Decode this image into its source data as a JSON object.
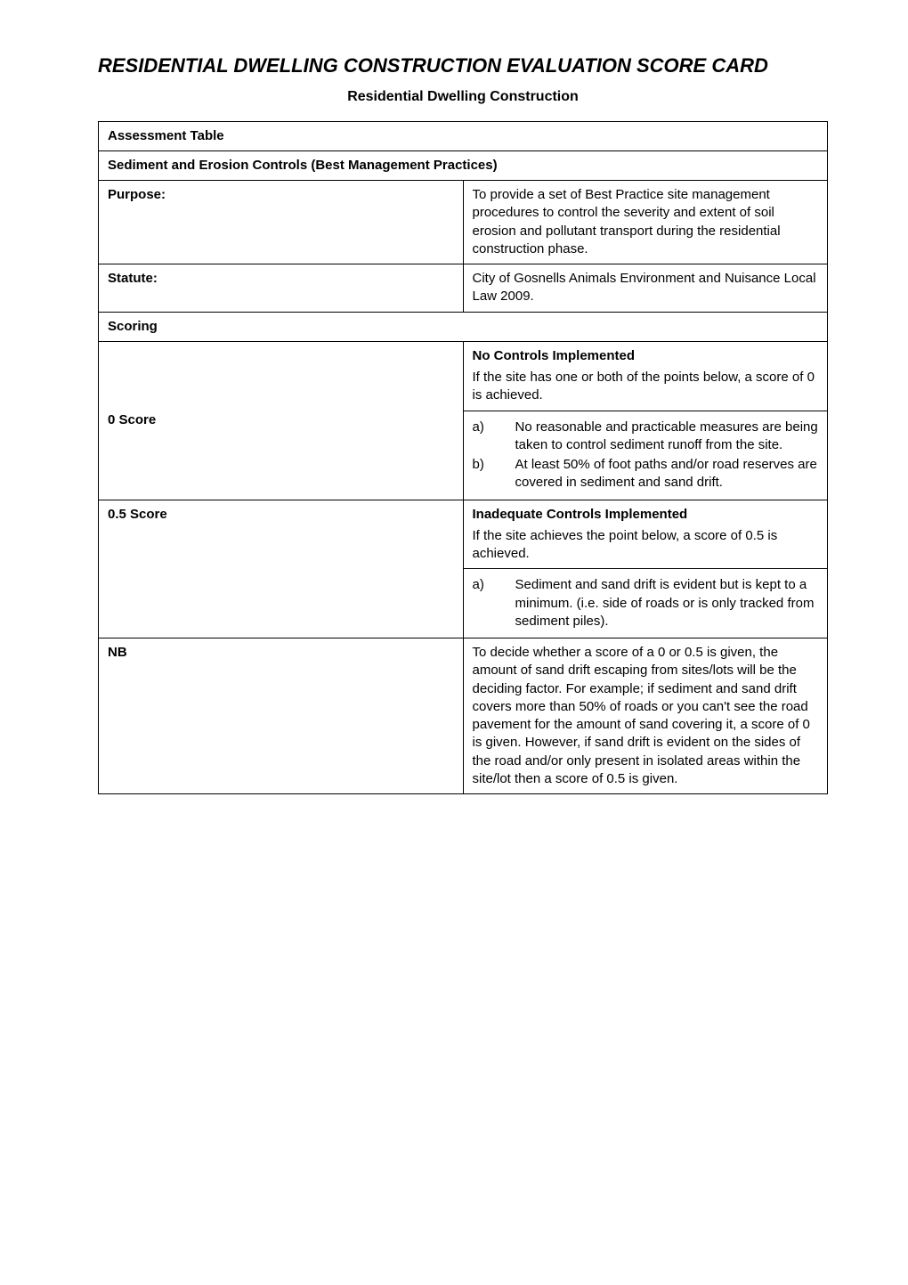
{
  "title_line": "RESIDENTIAL DWELLING CONSTRUCTION EVALUATION SCORE CARD",
  "subtitle": "Residential Dwelling Construction",
  "table": {
    "header": "Assessment Table",
    "section_header": "Sediment and Erosion Controls (Best Management Practices)",
    "purpose": {
      "label": "Purpose:",
      "text": "To provide a set of Best Practice site management procedures to control the severity and extent of soil erosion and pollutant transport during the residential construction phase."
    },
    "statute": {
      "label": "Statute:",
      "text": "City of Gosnells Animals Environment and Nuisance Local Law 2009."
    },
    "scoring_header": "Scoring",
    "score0": {
      "label": "0 Score",
      "heading": "No Controls Implemented",
      "intro": "If the site has one or both of the points below, a score of 0 is achieved.",
      "items": [
        {
          "letter": "a)",
          "text": "No reasonable and practicable measures are being taken to control sediment runoff from the site."
        },
        {
          "letter": "b)",
          "text": "At least 50% of foot paths and/or road reserves are covered in sediment and sand drift."
        }
      ]
    },
    "score05": {
      "label": "0.5 Score",
      "heading": "Inadequate Controls Implemented",
      "intro": "If the site achieves the point below, a score of 0.5 is achieved.",
      "items": [
        {
          "letter": "a)",
          "text": "Sediment and sand drift is evident but is kept to a minimum. (i.e. side of roads or is only tracked from sediment piles)."
        }
      ]
    },
    "nb": {
      "label": "NB",
      "text": "To decide whether a score of a 0 or 0.5 is given, the amount of sand drift escaping from sites/lots will be the deciding factor. For example; if sediment and sand drift covers more than 50% of roads or you can't see the road pavement for the amount of sand covering it, a score of 0 is given. However, if sand drift is evident on the sides of the road and/or only present in isolated areas within the site/lot then a score of 0.5 is given."
    }
  },
  "colors": {
    "background": "#ffffff",
    "text": "#000000",
    "border": "#000000"
  }
}
